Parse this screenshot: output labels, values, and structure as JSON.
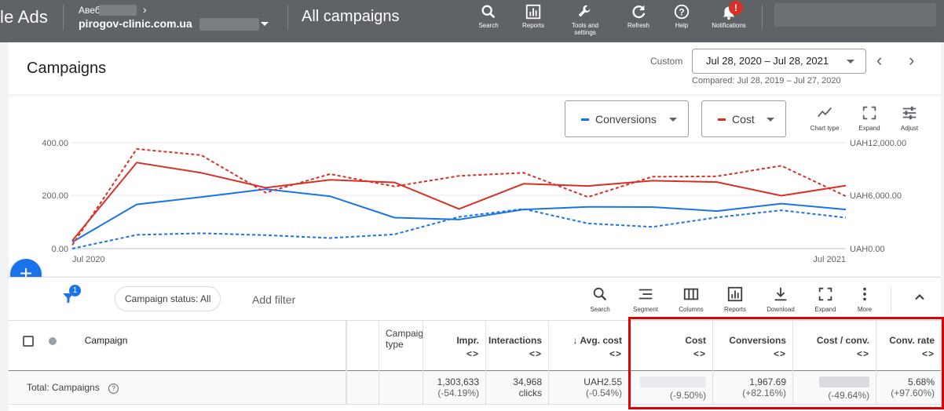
{
  "topbar": {
    "brand": "le Ads",
    "account_name": "Авеб",
    "account_domain": "pirogov-clinic.com.ua",
    "page_name": "All campaigns",
    "tools": [
      {
        "label": "Search",
        "icon": "search-icon"
      },
      {
        "label": "Reports",
        "icon": "reports-icon"
      },
      {
        "label": "Tools and settings",
        "icon": "wrench-icon"
      },
      {
        "label": "Refresh",
        "icon": "refresh-icon"
      },
      {
        "label": "Help",
        "icon": "help-icon"
      },
      {
        "label": "Notifications",
        "icon": "bell-icon"
      }
    ],
    "notification_badge": "!"
  },
  "header": {
    "title": "Campaigns",
    "custom_label": "Custom",
    "date_range": "Jul 28, 2020 – Jul 28, 2021",
    "compared": "Compared: Jul 28, 2019 – Jul 27, 2020"
  },
  "chart_controls": {
    "metric1": "Conversions",
    "metric1_color": "#1a73e8",
    "metric2": "Cost",
    "metric2_color": "#d93025",
    "tools": [
      "Chart type",
      "Expand",
      "Adjust"
    ]
  },
  "chart_data": {
    "type": "line",
    "x_start_label": "Jul 2020",
    "x_end_label": "Jul 2021",
    "y_left_ticks": [
      "400.00",
      "200.00",
      "0.00"
    ],
    "y_right_ticks": [
      "UAH12,000.00",
      "UAH6,000.00",
      "UAH0.00"
    ],
    "y_left_range": [
      0,
      400
    ],
    "y_right_range": [
      0,
      12000
    ],
    "series": [
      {
        "name": "Conversions",
        "axis": "left",
        "color": "#1a73e8",
        "style": "solid",
        "values": [
          25,
          167,
          195,
          225,
          198,
          117,
          110,
          148,
          158,
          157,
          142,
          170,
          148
        ]
      },
      {
        "name": "Conversions",
        "axis": "left",
        "color": "#1a73e8",
        "style": "dashed",
        "values": [
          0,
          52,
          58,
          51,
          40,
          54,
          120,
          150,
          95,
          82,
          118,
          145,
          117
        ]
      },
      {
        "name": "Cost",
        "axis": "right",
        "color": "#d93025",
        "style": "solid",
        "values": [
          900,
          9750,
          8600,
          6900,
          7800,
          7500,
          4500,
          7350,
          7100,
          7700,
          7550,
          6000,
          7150
        ]
      },
      {
        "name": "Cost",
        "axis": "right",
        "color": "#d93025",
        "style": "dashed",
        "values": [
          400,
          11300,
          10600,
          6350,
          8450,
          7050,
          8250,
          8600,
          5850,
          8150,
          8200,
          9400,
          5950
        ]
      }
    ]
  },
  "toolbar": {
    "add_button": "+",
    "filter_badge": "1",
    "chip": "Campaign status: All",
    "add_filter": "Add filter",
    "tools": [
      "Search",
      "Segment",
      "Columns",
      "Reports",
      "Download",
      "Expand",
      "More"
    ]
  },
  "table": {
    "headers": {
      "campaign": "Campaign",
      "campaign_type": "Campaign type",
      "impr": "Impr.",
      "interactions": "Interactions",
      "avg_cost": "Avg. cost",
      "cost": "Cost",
      "conversions": "Conversions",
      "cost_conv": "Cost / conv.",
      "conv_rate": "Conv. rate"
    },
    "sort_arrows": "<>",
    "total": {
      "label": "Total: Campaigns",
      "impr": "1,303,633",
      "impr_change": "(-54.19%)",
      "interactions": "34,968",
      "interactions_unit": "clicks",
      "avg_cost": "UAH2.55",
      "avg_cost_change": "(-0.54%)",
      "cost_change": "(-9.50%)",
      "conversions": "1,967.69",
      "conversions_change": "(+82.16%)",
      "cost_conv_change": "(-49.64%)",
      "conv_rate": "5.68%",
      "conv_rate_change": "(+97.60%)"
    }
  }
}
